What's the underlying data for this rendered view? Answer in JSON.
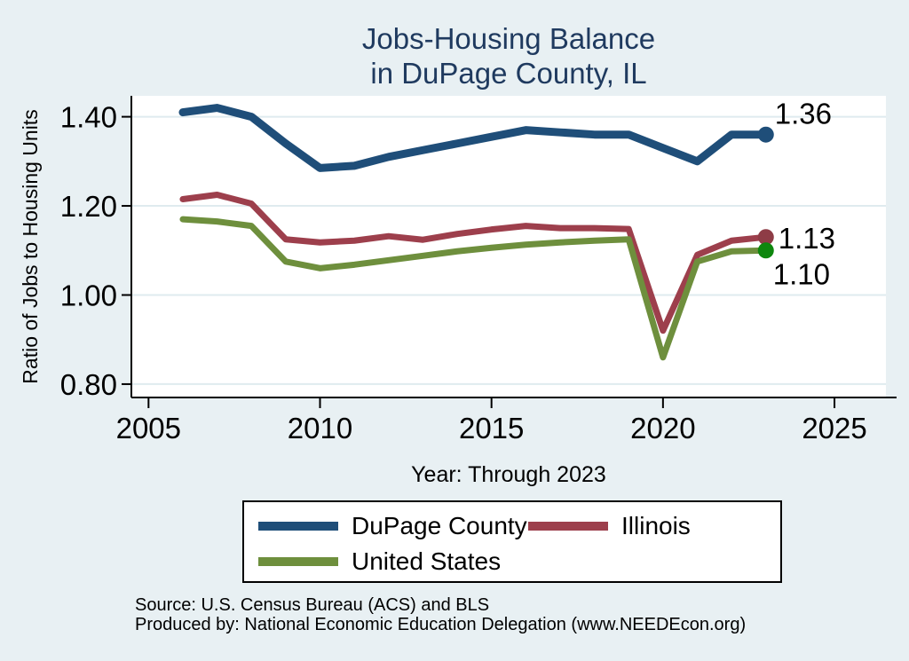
{
  "title": {
    "line1": "Jobs-Housing Balance",
    "line2": "in DuPage County, IL"
  },
  "axes": {
    "y_label": "Ratio of Jobs to Housing Units",
    "x_label": "Year: Through 2023"
  },
  "legend": {
    "items": [
      {
        "label": "DuPage County",
        "color": "#1f4e79"
      },
      {
        "label": "Illinois",
        "color": "#9d3f4c"
      },
      {
        "label": "United States",
        "color": "#6e8f3d"
      }
    ]
  },
  "footer": {
    "source": "Source: U.S. Census Bureau (ACS) and BLS",
    "produced_by": "Produced by: National Economic Education Delegation (www.NEEDEcon.org)"
  },
  "colors": {
    "background": "#e8f0f3",
    "plot_bg": "#ffffff",
    "grid": "#dfebef",
    "title": "#1f3a5f",
    "axis": "#000000",
    "text": "#000000"
  },
  "chart_data": {
    "type": "line",
    "title": "Jobs-Housing Balance in DuPage County, IL",
    "xlabel": "Year: Through 2023",
    "ylabel": "Ratio of Jobs to Housing Units",
    "x": [
      2006,
      2007,
      2008,
      2009,
      2010,
      2011,
      2012,
      2013,
      2014,
      2015,
      2016,
      2017,
      2018,
      2019,
      2020,
      2021,
      2022,
      2023
    ],
    "series": [
      {
        "name": "DuPage County",
        "color": "#1f4e79",
        "marker_color": "#1f4e79",
        "end_label": "1.36",
        "values": [
          1.41,
          1.42,
          1.4,
          1.34,
          1.285,
          1.29,
          1.31,
          1.325,
          1.34,
          1.355,
          1.37,
          1.365,
          1.36,
          1.36,
          1.33,
          1.3,
          1.36,
          1.36
        ]
      },
      {
        "name": "Illinois",
        "color": "#9d3f4c",
        "marker_color": "#8e3c46",
        "end_label": "1.13",
        "values": [
          1.215,
          1.225,
          1.205,
          1.125,
          1.118,
          1.122,
          1.132,
          1.124,
          1.137,
          1.147,
          1.155,
          1.15,
          1.15,
          1.148,
          0.92,
          1.09,
          1.122,
          1.13
        ]
      },
      {
        "name": "United States",
        "color": "#6e8f3d",
        "marker_color": "#0e870e",
        "end_label": "1.10",
        "values": [
          1.17,
          1.165,
          1.155,
          1.075,
          1.06,
          1.068,
          1.078,
          1.088,
          1.098,
          1.106,
          1.113,
          1.118,
          1.122,
          1.125,
          0.86,
          1.075,
          1.098,
          1.1
        ]
      }
    ],
    "x_ticks": [
      2005,
      2010,
      2015,
      2020,
      2025
    ],
    "y_ticks": [
      0.8,
      1.0,
      1.2,
      1.4
    ],
    "xlim": [
      2004.5,
      2026.5
    ],
    "ylim": [
      0.77,
      1.447
    ],
    "grid": true,
    "legend_position": "bottom"
  }
}
